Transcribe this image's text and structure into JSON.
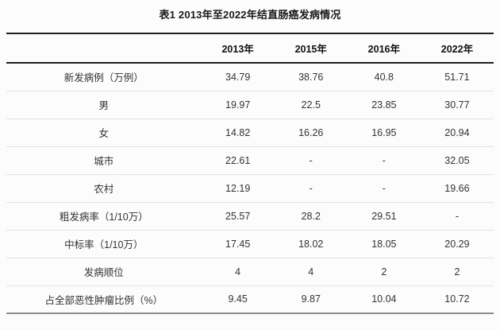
{
  "title": "表1 2013年至2022年结直肠癌发病情况",
  "colors": {
    "page_background": "#fcfcfc",
    "rule_dark": "#1f1f1f",
    "rule_light": "#e3e3e3",
    "rule_bottom": "#8c8c8c",
    "text_body": "#333333",
    "text_heading": "#111111"
  },
  "chart_data": {
    "type": "table",
    "title": "表1 2013年至2022年结直肠癌发病情况",
    "columns": [
      "",
      "2013年",
      "2015年",
      "2016年",
      "2022年"
    ],
    "rows": [
      {
        "label": "新发病例（万例）",
        "values": [
          "34.79",
          "38.76",
          "40.8",
          "51.71"
        ]
      },
      {
        "label": "男",
        "values": [
          "19.97",
          "22.5",
          "23.85",
          "30.77"
        ]
      },
      {
        "label": "女",
        "values": [
          "14.82",
          "16.26",
          "16.95",
          "20.94"
        ]
      },
      {
        "label": "城市",
        "values": [
          "22.61",
          "-",
          "-",
          "32.05"
        ]
      },
      {
        "label": "农村",
        "values": [
          "12.19",
          "-",
          "-",
          "19.66"
        ]
      },
      {
        "label": "粗发病率（1/10万）",
        "values": [
          "25.57",
          "28.2",
          "29.51",
          "-"
        ]
      },
      {
        "label": "中标率（1/10万）",
        "values": [
          "17.45",
          "18.02",
          "18.05",
          "20.29"
        ]
      },
      {
        "label": "发病顺位",
        "values": [
          "4",
          "4",
          "2",
          "2"
        ]
      },
      {
        "label": "占全部恶性肿瘤比例（%）",
        "values": [
          "9.45",
          "9.87",
          "10.04",
          "10.72"
        ]
      }
    ]
  }
}
